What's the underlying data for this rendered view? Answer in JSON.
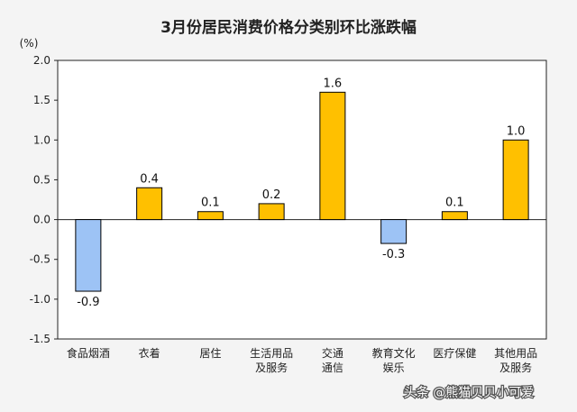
{
  "chart_data": {
    "type": "bar",
    "title": "3月份居民消费价格分类别环比涨跌幅",
    "ylabel": "(%)",
    "ylim": [
      -1.5,
      2.0
    ],
    "yticks": [
      "2.0",
      "1.5",
      "1.0",
      "0.5",
      "0.0",
      "-0.5",
      "-1.0",
      "-1.5"
    ],
    "categories": [
      [
        "食品烟酒"
      ],
      [
        "衣着"
      ],
      [
        "居住"
      ],
      [
        "生活用品",
        "及服务"
      ],
      [
        "交通",
        "通信"
      ],
      [
        "教育文化",
        "娱乐"
      ],
      [
        "医疗保健"
      ],
      [
        "其他用品",
        "及服务"
      ]
    ],
    "values": [
      -0.9,
      0.4,
      0.1,
      0.2,
      1.6,
      -0.3,
      0.1,
      1.0
    ],
    "labels": [
      "-0.9",
      "0.4",
      "0.1",
      "0.2",
      "1.6",
      "-0.3",
      "0.1",
      "1.0"
    ],
    "colors": {
      "positive": "#FFC000",
      "negative": "#9DC3F5",
      "stroke": "#000000"
    },
    "grid": false
  },
  "watermark": "头条 @熊猫贝贝小可爱"
}
